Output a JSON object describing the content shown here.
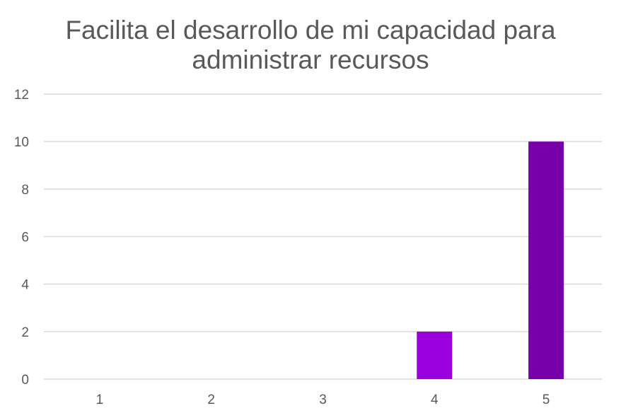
{
  "chart_data": {
    "type": "bar",
    "title": "Facilita el desarrollo de mi capacidad para\nadministrar recursos",
    "categories": [
      "1",
      "2",
      "3",
      "4",
      "5"
    ],
    "values": [
      0,
      0,
      0,
      2,
      10
    ],
    "bar_colors": [
      "#9900dd",
      "#9900dd",
      "#9900dd",
      "#9900dd",
      "#7700a8"
    ],
    "ylim": [
      0,
      12
    ],
    "yticks": [
      0,
      2,
      4,
      6,
      8,
      10,
      12
    ],
    "grid": true,
    "gridline_color": "#d9d9d9",
    "text_color": "#595959",
    "legend": "none"
  }
}
